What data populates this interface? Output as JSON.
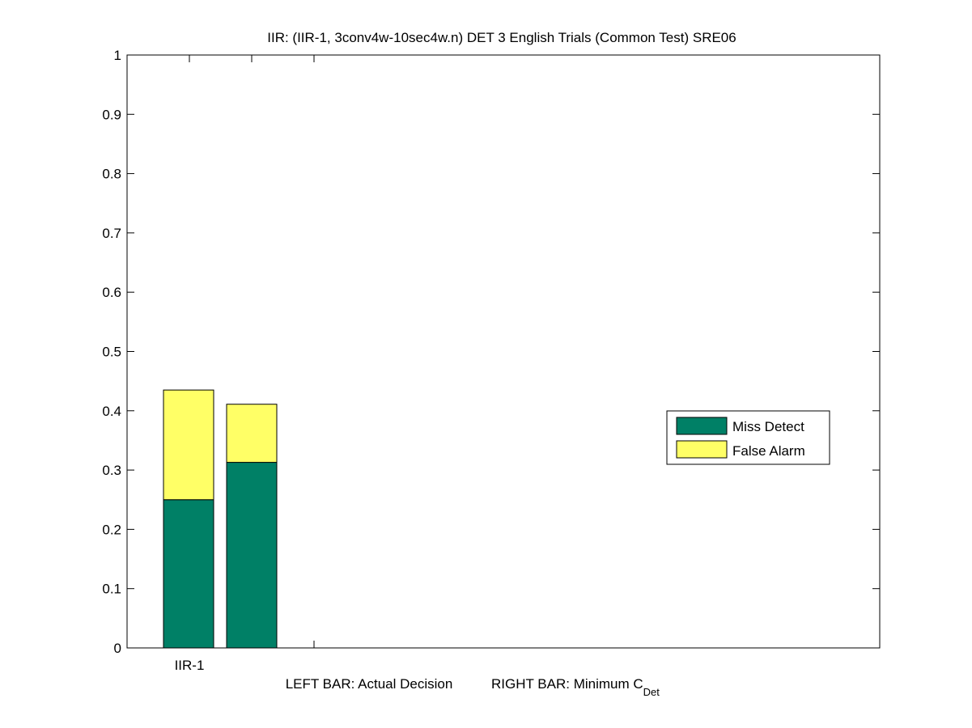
{
  "chart_data": {
    "type": "bar",
    "stacked": true,
    "title": "IIR: (IIR-1, 3conv4w-10sec4w.n) DET 3 English Trials (Common Test) SRE06",
    "categories": [
      "IIR-1"
    ],
    "bars": [
      {
        "label": "Actual Decision",
        "miss_detect": 0.25,
        "false_alarm": 0.185
      },
      {
        "label": "Minimum C_Det",
        "miss_detect": 0.313,
        "false_alarm": 0.098
      }
    ],
    "series": [
      {
        "name": "Miss Detect",
        "color": "#008066"
      },
      {
        "name": "False Alarm",
        "color": "#ffff66"
      }
    ],
    "xlabel": {
      "left_text": "LEFT BAR: Actual Decision",
      "right_text": "RIGHT BAR: Minimum C",
      "right_subscript": "Det"
    },
    "ylim": [
      0,
      1
    ],
    "yticks": [
      "0",
      "0.1",
      "0.2",
      "0.3",
      "0.4",
      "0.5",
      "0.6",
      "0.7",
      "0.8",
      "0.9",
      "1"
    ],
    "grid": false,
    "legend_position": "right"
  }
}
